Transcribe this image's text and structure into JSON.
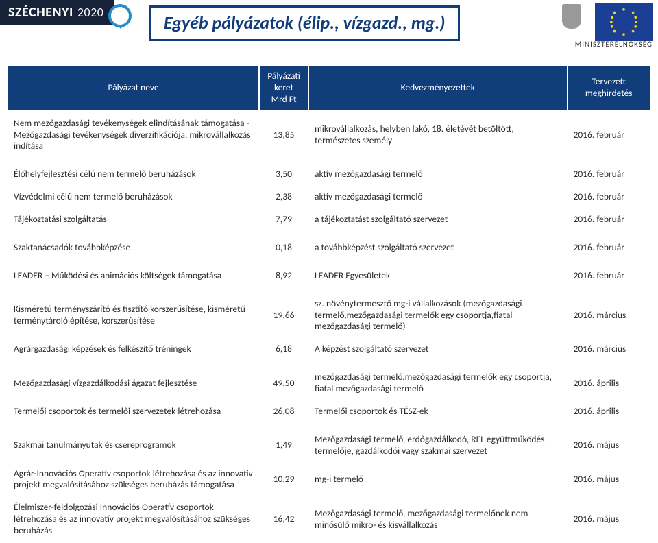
{
  "header": {
    "brand": "SZÉCHENYI",
    "brand_year": "2020",
    "title": "Egyéb pályázatok (élip., vízgazd., mg.)",
    "ministry": "MINISZTERELNÖKSÉG",
    "colors": {
      "logo_bg": "#152238",
      "title_border": "#113d7a",
      "title_text": "#113d7a",
      "table_header_bg": "#113d7a",
      "table_header_text": "#ffffff",
      "eu_flag_bg": "#1b3f94",
      "eu_star": "#f7d417"
    }
  },
  "table": {
    "columns": {
      "c1": "Pályázat neve",
      "c2": "Pályázati keret Mrd Ft",
      "c3": "Kedvezményezettek",
      "c4": "Tervezett meghirdetés"
    },
    "rows": [
      {
        "name": "Nem mezőgazdasági tevékenységek elindításának támogatása - Mezőgazdasági tevékenységek diverzifikációja, mikrovállalkozás indítása",
        "budget": "13,85",
        "beneficiary": "mikrovállalkozás, helyben lakó, 18. életévét betöltött, természetes személy",
        "date": "2016. február"
      },
      {
        "name": "Élőhelyfejlesztési célú nem termelő beruházások",
        "budget": "3,50",
        "beneficiary": "aktív mezőgazdasági termelő",
        "date": "2016. február"
      },
      {
        "name": "Vízvédelmi célú nem termelő beruházások",
        "budget": "2,38",
        "beneficiary": "aktív mezőgazdasági termelő",
        "date": "2016. február"
      },
      {
        "name": "Tájékoztatási szolgáltatás",
        "budget": "7,79",
        "beneficiary": "a tájékoztatást szolgáltató szervezet",
        "date": "2016. február"
      },
      {
        "name": "Szaktanácsadók továbbképzése",
        "budget": "0,18",
        "beneficiary": "a továbbképzést szolgáltató szervezet",
        "date": "2016. február"
      },
      {
        "name": "LEADER – Működési és animációs költségek támogatása",
        "budget": "8,92",
        "beneficiary": "LEADER Egyesületek",
        "date": "2016. február"
      },
      {
        "name": "Kisméretű terményszárító és tisztító korszerűsítése, kisméretű terménytároló építése, korszerűsítése",
        "budget": "19,66",
        "beneficiary": "sz. növénytermesztő mg-i vállalkozások (mezőgazdasági termelő,mezőgazdasági termelők egy csoportja,fiatal mezőgazdasági termelő)",
        "date": "2016. március"
      },
      {
        "name": "Agrárgazdasági képzések és felkészítő tréningek",
        "budget": "6,18",
        "beneficiary": "A képzést szolgáltató szervezet",
        "date": "2016. március"
      },
      {
        "name": "Mezőgazdasági vízgazdálkodási ágazat fejlesztése",
        "budget": "49,50",
        "beneficiary": "mezőgazdasági termelő,mezőgazdasági termelők egy csoportja, fiatal mezőgazdasági termelő",
        "date": "2016. április"
      },
      {
        "name": "Termelői csoportok és termelői szervezetek létrehozása",
        "budget": "26,08",
        "beneficiary": "Termelői csoportok és TÉSZ-ek",
        "date": "2016. április"
      },
      {
        "name": "Szakmai tanulmányutak és csereprogramok",
        "budget": "1,49",
        "beneficiary": "Mezőgazdasági termelő, erdőgazdálkodó, REL együttműködés termelője, gazdálkodói vagy szakmai szervezet",
        "date": "2016. május"
      },
      {
        "name": "Agrár-Innovációs Operatív csoportok létrehozása és az innovatív projekt megvalósításához szükséges beruházás támogatása",
        "budget": "10,29",
        "beneficiary": "mg-i termelő",
        "date": "2016. május"
      },
      {
        "name": "Élelmiszer-feldolgozási Innovációs Operatív csoportok létrehozása és az innovatív projekt megvalósításához szükséges beruházás",
        "budget": "16,42",
        "beneficiary": "Mezőgazdasági termelő, mezőgazdasági termelőnek nem minősülő mikro- és kisvállalkozás",
        "date": "2016. május"
      }
    ]
  }
}
